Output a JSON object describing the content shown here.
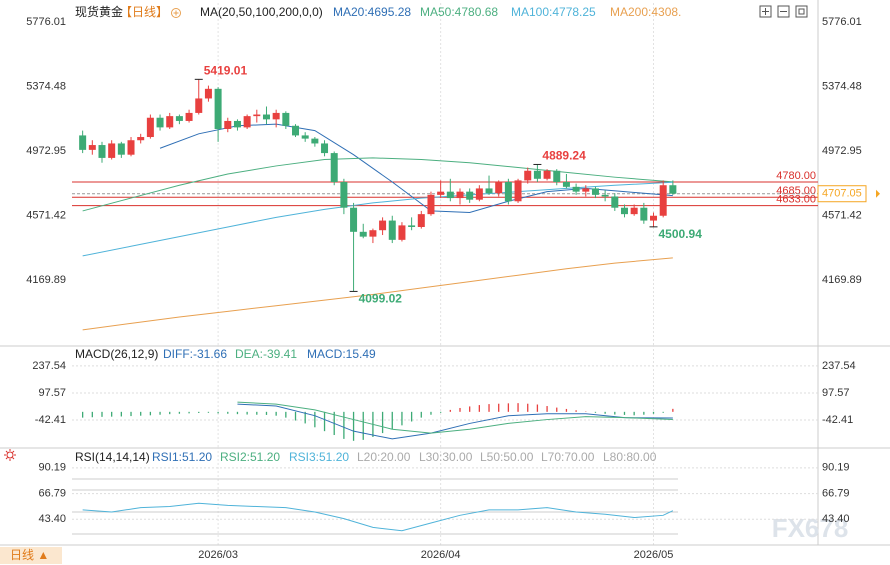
{
  "chart_data": [
    {
      "type": "candlestick",
      "title": "现货黄金",
      "period": "【日线】",
      "indicator": "MA(20,50,100,200,0,0)",
      "ylim": [
        3778,
        5863
      ],
      "yticks": [
        5776.01,
        5374.48,
        4972.95,
        4571.42,
        4169.89
      ],
      "xlim": [
        -1.1,
        76
      ],
      "xticks": [
        {
          "value": 14,
          "label": "2026/03"
        },
        {
          "value": 37,
          "label": "2026/04"
        },
        {
          "value": 59,
          "label": "2026/05"
        }
      ],
      "up_color": "#e8403f",
      "down_color": "#3daa75",
      "candles": {
        "x": [
          0,
          1,
          2,
          3,
          4,
          5,
          6,
          7,
          8,
          9,
          10,
          11,
          12,
          13,
          14,
          15,
          16,
          17,
          18,
          19,
          20,
          21,
          22,
          23,
          24,
          25,
          26,
          27,
          28,
          29,
          30,
          31,
          32,
          33,
          34,
          35,
          36,
          37,
          38,
          39,
          40,
          41,
          42,
          43,
          44,
          45,
          46,
          47,
          48,
          49,
          50,
          51,
          52,
          53,
          54,
          55,
          56,
          57,
          58,
          59,
          60,
          61
        ],
        "open": [
          5070,
          4980,
          5010,
          4930,
          5020,
          4950,
          5040,
          5060,
          5180,
          5120,
          5190,
          5160,
          5210,
          5300,
          5360,
          5110,
          5160,
          5120,
          5190,
          5200,
          5170,
          5210,
          5130,
          5070,
          5050,
          5020,
          4960,
          4780,
          4620,
          4470,
          4440,
          4480,
          4540,
          4420,
          4510,
          4500,
          4580,
          4700,
          4720,
          4680,
          4720,
          4670,
          4740,
          4710,
          4780,
          4660,
          4790,
          4850,
          4800,
          4850,
          4780,
          4750,
          4720,
          4740,
          4700,
          4690,
          4620,
          4580,
          4620,
          4540,
          4570,
          4760
        ],
        "high": [
          5100,
          5040,
          5030,
          5040,
          5030,
          5060,
          5080,
          5200,
          5200,
          5210,
          5200,
          5230,
          5419.01,
          5380,
          5370,
          5180,
          5170,
          5200,
          5230,
          5250,
          5230,
          5220,
          5140,
          5090,
          5060,
          5040,
          4970,
          4800,
          4650,
          4520,
          4490,
          4560,
          4570,
          4530,
          4560,
          4600,
          4720,
          4790,
          4800,
          4740,
          4740,
          4760,
          4820,
          4790,
          4800,
          4800,
          4870,
          4889.24,
          4860,
          4860,
          4830,
          4770,
          4760,
          4750,
          4730,
          4710,
          4640,
          4640,
          4650,
          4590,
          4790,
          4790
        ],
        "low": [
          4960,
          4950,
          4900,
          4920,
          4930,
          4940,
          5020,
          5050,
          5100,
          5110,
          5140,
          5150,
          5200,
          5280,
          5030,
          5090,
          5100,
          5110,
          5150,
          5140,
          5120,
          5110,
          5060,
          5030,
          5000,
          4940,
          4760,
          4580,
          4099.02,
          4430,
          4400,
          4450,
          4400,
          4410,
          4480,
          4490,
          4570,
          4680,
          4660,
          4640,
          4650,
          4660,
          4700,
          4690,
          4640,
          4650,
          4770,
          4780,
          4790,
          4760,
          4740,
          4700,
          4690,
          4680,
          4660,
          4600,
          4560,
          4570,
          4520,
          4500.94,
          4560,
          4700
        ],
        "close": [
          4980,
          5010,
          4930,
          5020,
          4950,
          5040,
          5060,
          5180,
          5120,
          5190,
          5160,
          5210,
          5300,
          5360,
          5110,
          5160,
          5120,
          5190,
          5200,
          5170,
          5210,
          5130,
          5070,
          5050,
          5020,
          4960,
          4780,
          4620,
          4470,
          4440,
          4480,
          4540,
          4420,
          4510,
          4500,
          4580,
          4700,
          4720,
          4680,
          4720,
          4670,
          4740,
          4710,
          4780,
          4660,
          4790,
          4850,
          4800,
          4850,
          4780,
          4750,
          4720,
          4740,
          4700,
          4690,
          4620,
          4580,
          4620,
          4540,
          4570,
          4760,
          4707.05
        ]
      },
      "series": [
        {
          "name": "MA20",
          "legend": "MA20:4695.28",
          "color": "#2f6fb5",
          "x": [
            8,
            12,
            16,
            20,
            24,
            28,
            32,
            36,
            40,
            44,
            48,
            52,
            56,
            61
          ],
          "values": [
            4990,
            5080,
            5130,
            5140,
            5100,
            4950,
            4780,
            4600,
            4590,
            4660,
            4720,
            4740,
            4720,
            4695.28
          ]
        },
        {
          "name": "MA50",
          "legend": "MA50:4780.68",
          "color": "#4caf80",
          "x": [
            0,
            5,
            10,
            15,
            20,
            25,
            30,
            35,
            40,
            45,
            50,
            55,
            61
          ],
          "values": [
            4600,
            4680,
            4760,
            4830,
            4880,
            4920,
            4930,
            4920,
            4900,
            4870,
            4840,
            4810,
            4780.68
          ]
        },
        {
          "name": "MA100",
          "legend": "MA100:4778.25",
          "color": "#4fb3d9",
          "x": [
            0,
            5,
            10,
            15,
            20,
            25,
            30,
            35,
            40,
            45,
            50,
            55,
            61
          ],
          "values": [
            4320,
            4380,
            4440,
            4500,
            4560,
            4610,
            4650,
            4680,
            4700,
            4720,
            4740,
            4760,
            4778.25
          ]
        },
        {
          "name": "MA200",
          "legend": "MA200:4308.",
          "color": "#e8a050",
          "x": [
            0,
            5,
            10,
            15,
            20,
            25,
            30,
            35,
            40,
            45,
            50,
            55,
            61
          ],
          "values": [
            3860,
            3900,
            3940,
            3975,
            4010,
            4045,
            4080,
            4120,
            4160,
            4200,
            4240,
            4275,
            4308
          ]
        }
      ],
      "levels": [
        {
          "value": 4780,
          "label": "4780.00"
        },
        {
          "value": 4685,
          "label": "4685.00"
        },
        {
          "value": 4633,
          "label": "4633.00"
        }
      ],
      "level_color": "#d9302c",
      "last_price": 4707.05,
      "last_color": "#f5a623",
      "annotations": [
        {
          "x": 12,
          "value": 5419.01,
          "color": "#e8403f"
        },
        {
          "x": 47,
          "value": 4889.24,
          "color": "#e8403f"
        },
        {
          "x": 28,
          "value": 4099.02,
          "color": "#3daa75"
        },
        {
          "x": 59,
          "value": 4500.94,
          "color": "#3daa75"
        }
      ]
    },
    {
      "type": "macd",
      "title": "MACD(26,12,9)",
      "xlim": [
        -1.1,
        76
      ],
      "ylim": [
        -182,
        320
      ],
      "yticks": [
        237.54,
        97.57,
        -42.41
      ],
      "histogram": {
        "name": "MACD",
        "legend": "MACD:15.49",
        "up_color": "#e8403f",
        "down_color": "#3daa75",
        "values": [
          -30,
          -28,
          -26,
          -25,
          -24,
          -22,
          -20,
          -18,
          -15,
          -12,
          -10,
          -8,
          -6,
          -5,
          -8,
          -10,
          -12,
          -14,
          -15,
          -16,
          -20,
          -30,
          -45,
          -60,
          -80,
          -100,
          -120,
          -140,
          -150,
          -145,
          -130,
          -110,
          -90,
          -70,
          -50,
          -30,
          -15,
          -5,
          10,
          20,
          28,
          35,
          40,
          42,
          44,
          45,
          42,
          38,
          30,
          22,
          15,
          8,
          2,
          -5,
          -10,
          -14,
          -16,
          -18,
          -15,
          -10,
          -5,
          15.49
        ]
      },
      "series": [
        {
          "name": "DIFF",
          "legend": "DIFF:-31.66",
          "color": "#2f6fb5",
          "x": [
            16,
            20,
            24,
            28,
            32,
            36,
            40,
            44,
            48,
            52,
            56,
            61
          ],
          "values": [
            40,
            30,
            -20,
            -100,
            -140,
            -110,
            -60,
            -20,
            -10,
            -10,
            -30,
            -31.66
          ]
        },
        {
          "name": "DEA",
          "legend": "DEA:-39.41",
          "color": "#4caf80",
          "x": [
            16,
            20,
            24,
            28,
            32,
            36,
            40,
            44,
            48,
            52,
            56,
            61
          ],
          "values": [
            50,
            40,
            10,
            -40,
            -90,
            -110,
            -90,
            -60,
            -40,
            -25,
            -30,
            -39.41
          ]
        }
      ]
    },
    {
      "type": "rsi",
      "title": "RSI(14,14,14)",
      "xlim": [
        -1.1,
        76
      ],
      "ylim": [
        20,
        104.6
      ],
      "yticks": [
        90.19,
        66.79,
        {
          "value": 43.4,
          "label": "43.40"
        }
      ],
      "legends": [
        {
          "text": "RSI1:51.20",
          "color": "#2f6fb5"
        },
        {
          "text": "RSI2:51.20",
          "color": "#4caf80"
        },
        {
          "text": "RSI3:51.20",
          "color": "#4fb3d9"
        },
        {
          "text": "L20:20.00",
          "color": "#aaaaaa"
        },
        {
          "text": "L30:30.00",
          "color": "#aaaaaa"
        },
        {
          "text": "L50:50.00",
          "color": "#aaaaaa"
        },
        {
          "text": "L70:70.00",
          "color": "#aaaaaa"
        },
        {
          "text": "L80:80.00",
          "color": "#aaaaaa"
        }
      ],
      "levels": [
        20,
        30,
        50,
        70,
        80
      ],
      "series": [
        {
          "name": "RSI1",
          "color": "#4fb3d9",
          "x": [
            0,
            3,
            6,
            9,
            12,
            15,
            18,
            21,
            24,
            27,
            30,
            33,
            36,
            39,
            42,
            45,
            48,
            51,
            54,
            57,
            60,
            61
          ],
          "values": [
            52,
            50,
            54,
            55,
            58,
            56,
            55,
            54,
            50,
            44,
            36,
            33,
            40,
            47,
            52,
            52,
            54,
            50,
            48,
            45,
            47,
            51.2
          ]
        }
      ]
    }
  ],
  "period_button": "日线 ▲",
  "watermark": "FX678"
}
